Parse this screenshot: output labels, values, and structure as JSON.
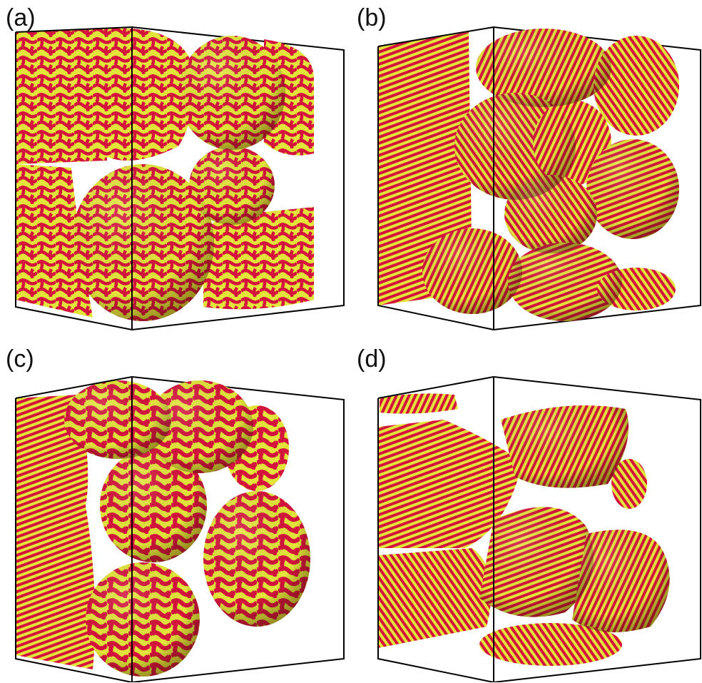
{
  "panels": [
    {
      "label": "(a)",
      "pattern": "labyrinth-coarse"
    },
    {
      "label": "(b)",
      "pattern": "stripes-fine-spiral"
    },
    {
      "label": "(c)",
      "pattern": "labyrinth-bold"
    },
    {
      "label": "(d)",
      "pattern": "stripes-fine-conical"
    }
  ],
  "colors": {
    "stripe_a": "#d4143c",
    "stripe_b": "#e2e43a",
    "edge": "#000000",
    "background": "#ffffff"
  }
}
